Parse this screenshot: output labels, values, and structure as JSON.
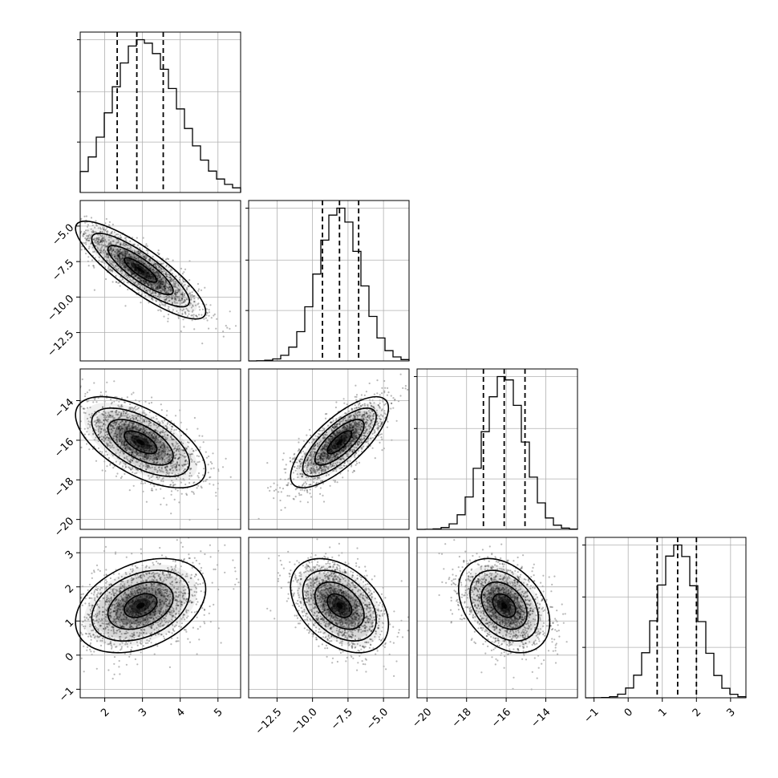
{
  "chart_data": {
    "type": "scatter",
    "subtype": "corner-plot",
    "parameters": [
      {
        "name": "p0",
        "axis_label": "",
        "mean": 2.95,
        "std": 0.75,
        "range": [
          1.35,
          5.6
        ],
        "ticks": [
          2,
          3,
          4,
          5
        ],
        "tick_labels": [
          "2",
          "3",
          "4",
          "5"
        ],
        "quantiles": [
          2.33,
          2.85,
          3.55
        ]
      },
      {
        "name": "p1",
        "axis_label": "",
        "mean": -8.1,
        "std": 1.5,
        "range": [
          -14.5,
          -3.2
        ],
        "ticks": [
          -12.5,
          -10.0,
          -7.5,
          -5.0
        ],
        "tick_labels": [
          "−12.5",
          "−10.0",
          "−7.5",
          "−5.0"
        ],
        "quantiles": [
          -9.3,
          -8.1,
          -6.75
        ]
      },
      {
        "name": "p2",
        "axis_label": "",
        "mean": -16.1,
        "std": 1.0,
        "range": [
          -20.5,
          -12.4
        ],
        "ticks": [
          -20,
          -18,
          -16,
          -14
        ],
        "tick_labels": [
          "−20",
          "−18",
          "−16",
          "−14"
        ],
        "quantiles": [
          -17.15,
          -16.1,
          -15.05
        ]
      },
      {
        "name": "p3",
        "axis_label": "",
        "mean": 1.45,
        "std": 0.6,
        "range": [
          -1.25,
          3.45
        ],
        "ticks": [
          -1,
          0,
          1,
          2,
          3
        ],
        "tick_labels": [
          "−1",
          "0",
          "1",
          "2",
          "3"
        ],
        "quantiles": [
          0.85,
          1.45,
          2.0
        ]
      }
    ],
    "correlations": [
      {
        "pair": [
          0,
          1
        ],
        "rho": -0.85
      },
      {
        "pair": [
          0,
          2
        ],
        "rho": -0.6
      },
      {
        "pair": [
          1,
          2
        ],
        "rho": 0.75
      },
      {
        "pair": [
          0,
          3
        ],
        "rho": 0.35
      },
      {
        "pair": [
          1,
          3
        ],
        "rho": -0.4
      },
      {
        "pair": [
          2,
          3
        ],
        "rho": -0.35
      }
    ],
    "histogram": {
      "bins": 20,
      "style": "step",
      "quantile_lines": "dashed"
    },
    "density": {
      "contour_levels_sigma": [
        0.5,
        1.0,
        1.5,
        2.0
      ],
      "scatter_points": "light gray",
      "shading": "grayscale 2D histogram"
    },
    "grid": true,
    "title": "",
    "legend": ""
  }
}
